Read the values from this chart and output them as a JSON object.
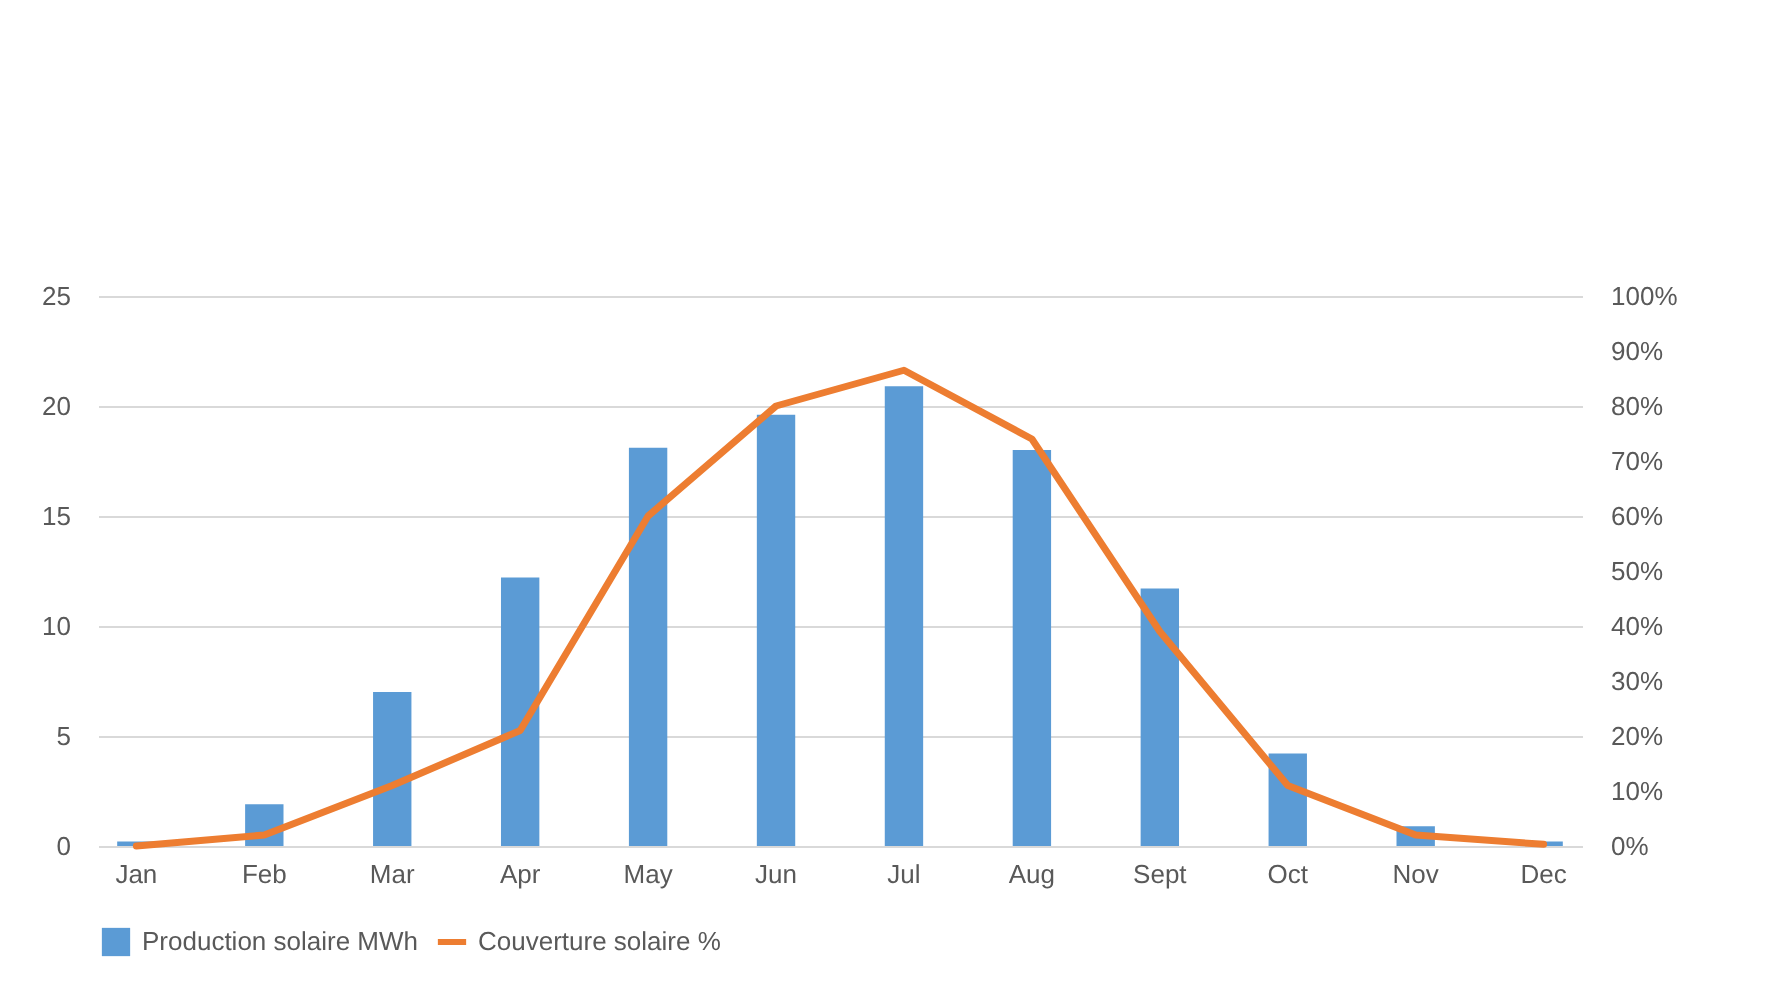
{
  "chart_data": {
    "type": "bar",
    "categories": [
      "Jan",
      "Feb",
      "Mar",
      "Apr",
      "May",
      "Jun",
      "Jul",
      "Aug",
      "Sept",
      "Oct",
      "Nov",
      "Dec"
    ],
    "series": [
      {
        "name": "Production solaire MWh",
        "color": "#5b9bd5",
        "values": [
          0.2,
          1.9,
          7.0,
          12.2,
          18.1,
          19.6,
          20.9,
          18.0,
          11.7,
          4.2,
          0.9,
          0.2
        ]
      },
      {
        "name": "Couverture solaire %",
        "type": "line",
        "axis": "y2",
        "color": "#ed7d31",
        "values": [
          0,
          2,
          11,
          21,
          60,
          80,
          86.5,
          74,
          39,
          11,
          2,
          0.3
        ]
      }
    ],
    "ylim": [
      0,
      25
    ],
    "yticks": [
      0,
      5,
      10,
      15,
      20,
      25
    ],
    "y2lim": [
      0,
      100
    ],
    "y2ticks": [
      {
        "value": 0,
        "label": "0%"
      },
      {
        "value": 10,
        "label": "10%"
      },
      {
        "value": 20,
        "label": "20%"
      },
      {
        "value": 30,
        "label": "30%"
      },
      {
        "value": 40,
        "label": "40%"
      },
      {
        "value": 50,
        "label": "50%"
      },
      {
        "value": 60,
        "label": "60%"
      },
      {
        "value": 70,
        "label": "70%"
      },
      {
        "value": 80,
        "label": "80%"
      },
      {
        "value": 90,
        "label": "90%"
      },
      {
        "value": 100,
        "label": "100%"
      }
    ],
    "grid": "y",
    "legend": "bottom",
    "marker": "none",
    "line_style": "solid"
  }
}
